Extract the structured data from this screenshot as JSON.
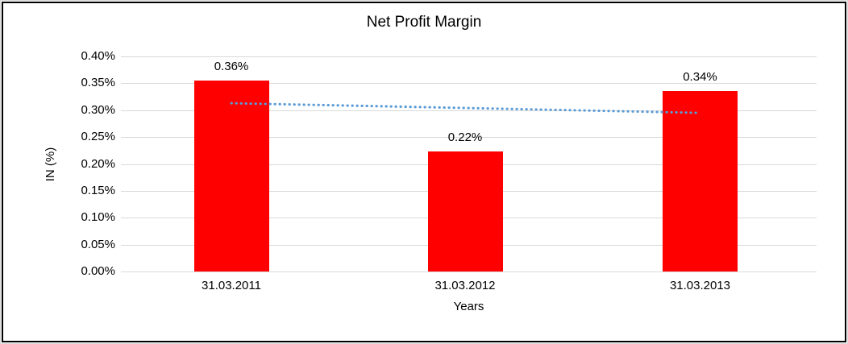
{
  "frame": {
    "background_color": "#ffffff",
    "border_color": "#000000",
    "outer_edge_color": "#d9d9d9"
  },
  "chart_data": {
    "type": "bar",
    "title": "Net Profit Margin",
    "xlabel": "Years",
    "ylabel": "IN (%)",
    "categories": [
      "31.03.2011",
      "31.03.2012",
      "31.03.2013"
    ],
    "values": [
      0.355,
      0.223,
      0.336
    ],
    "data_labels": [
      "0.36%",
      "0.22%",
      "0.34%"
    ],
    "ylim": [
      0.0,
      0.4
    ],
    "ytick_step": 0.05,
    "ytick_labels_top_to_bottom": [
      "0.40%",
      "0.35%",
      "0.30%",
      "0.25%",
      "0.20%",
      "0.15%",
      "0.10%",
      "0.05%",
      "0.00%"
    ],
    "grid": true,
    "gridline_color": "#d9d9d9",
    "legend": "none",
    "bar_color": "#ff0000",
    "trendline": {
      "type": "linear",
      "style": "dotted",
      "color": "#5b9bd5",
      "y_start_pct": 0.313,
      "y_end_pct": 0.295
    }
  }
}
